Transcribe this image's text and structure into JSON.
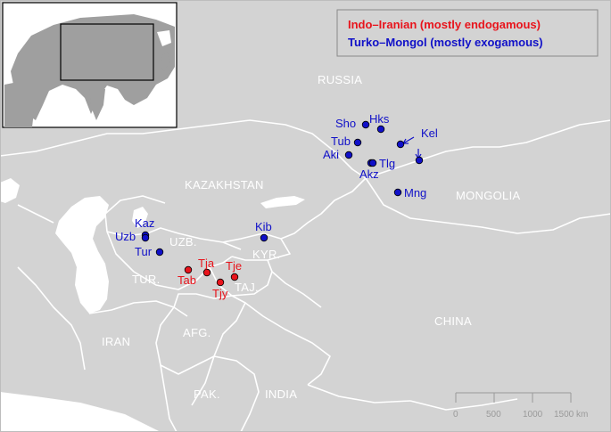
{
  "legend": {
    "indo_iranian": {
      "label": "Indo–Iranian (mostly endogamous)",
      "color": "#e8141c"
    },
    "turko_mongol": {
      "label": "Turko–Mongol (mostly exogamous)",
      "color": "#1010c8"
    }
  },
  "countries": {
    "russia": "RUSSIA",
    "kazakhstan": "KAZAKHSTAN",
    "mongolia": "MONGOLIA",
    "china": "CHINA",
    "uzbekistan": "UZB.",
    "kyrgyzstan": "KYR.",
    "turkmenistan": "TUR.",
    "tajikistan": "TAJ.",
    "iran": "IRAN",
    "afghanistan": "AFG.",
    "pakistan": "PAK.",
    "india": "INDIA"
  },
  "sites": {
    "indo_iranian": [
      "Tja",
      "Tje",
      "Tab",
      "Tjy"
    ],
    "turko_mongol": [
      "Kaz",
      "Uzb",
      "Tur",
      "Kib",
      "Sho",
      "Hks",
      "Tub",
      "Aki",
      "Kel",
      "Akz",
      "Tlg",
      "Mng"
    ]
  },
  "scale_bar": {
    "ticks": [
      "0",
      "500",
      "1000",
      "1500 km"
    ]
  },
  "colors": {
    "land": "#d3d3d3",
    "sea": "#ffffff",
    "border": "#ffffff",
    "inset_land": "#9f9f9f",
    "inset_sea": "#ffffff"
  }
}
